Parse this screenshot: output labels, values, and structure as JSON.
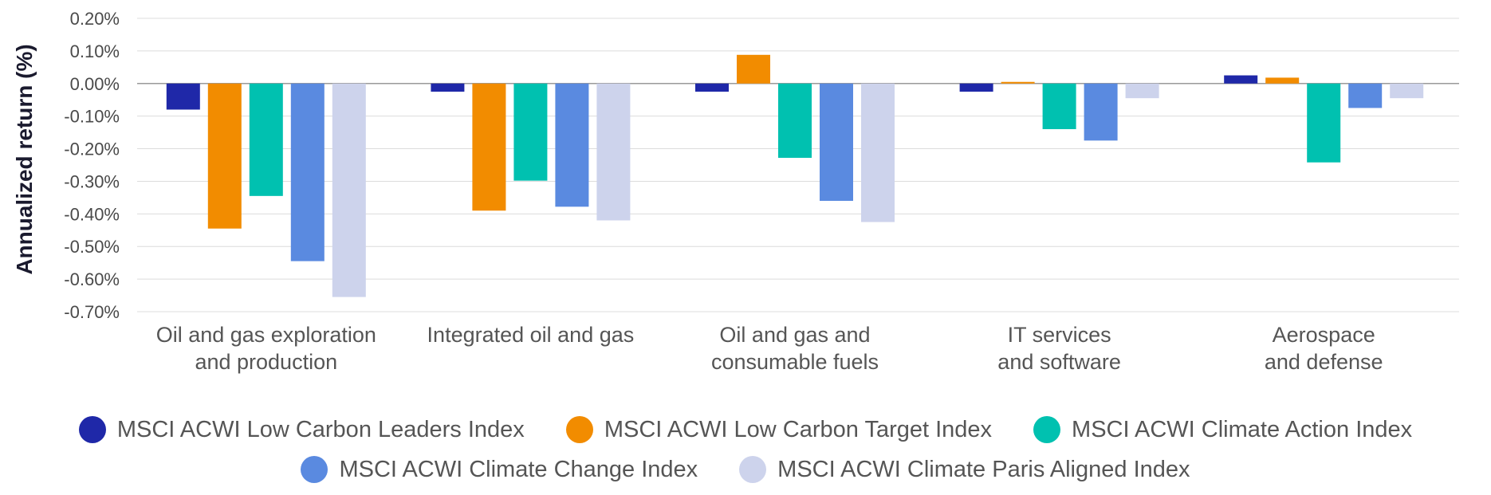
{
  "chart_data": {
    "type": "bar",
    "title": "",
    "xlabel": "",
    "ylabel": "Annualized return (%)",
    "ylim": [
      -0.7,
      0.2
    ],
    "yticks": [
      0.2,
      0.1,
      0.0,
      -0.1,
      -0.2,
      -0.3,
      -0.4,
      -0.5,
      -0.6,
      -0.7
    ],
    "ytick_labels": [
      "0.20%",
      "0.10%",
      "0.00%",
      "-0.10%",
      "-0.20%",
      "-0.30%",
      "-0.40%",
      "-0.50%",
      "-0.60%",
      "-0.70%"
    ],
    "grid": true,
    "legend_position": "bottom",
    "categories": [
      [
        "Oil and gas exploration",
        "and production"
      ],
      [
        "Integrated oil and gas"
      ],
      [
        "Oil and gas and",
        "consumable fuels"
      ],
      [
        "IT services",
        "and software"
      ],
      [
        "Aerospace",
        "and defense"
      ]
    ],
    "series": [
      {
        "name": "MSCI ACWI Low Carbon Leaders Index",
        "color": "#1f28a8",
        "values": [
          -0.08,
          -0.025,
          -0.025,
          -0.025,
          0.025
        ]
      },
      {
        "name": "MSCI ACWI Low Carbon Target Index",
        "color": "#f28c00",
        "values": [
          -0.445,
          -0.39,
          0.088,
          0.005,
          0.018
        ]
      },
      {
        "name": "MSCI ACWI Climate Action Index",
        "color": "#00c1b0",
        "values": [
          -0.345,
          -0.298,
          -0.228,
          -0.14,
          -0.242
        ]
      },
      {
        "name": "MSCI ACWI Climate Change Index",
        "color": "#5a8ae0",
        "values": [
          -0.545,
          -0.378,
          -0.36,
          -0.175,
          -0.075
        ]
      },
      {
        "name": "MSCI ACWI Climate Paris Aligned Index",
        "color": "#cdd3ec",
        "values": [
          -0.655,
          -0.42,
          -0.425,
          -0.045,
          -0.045
        ]
      }
    ]
  }
}
